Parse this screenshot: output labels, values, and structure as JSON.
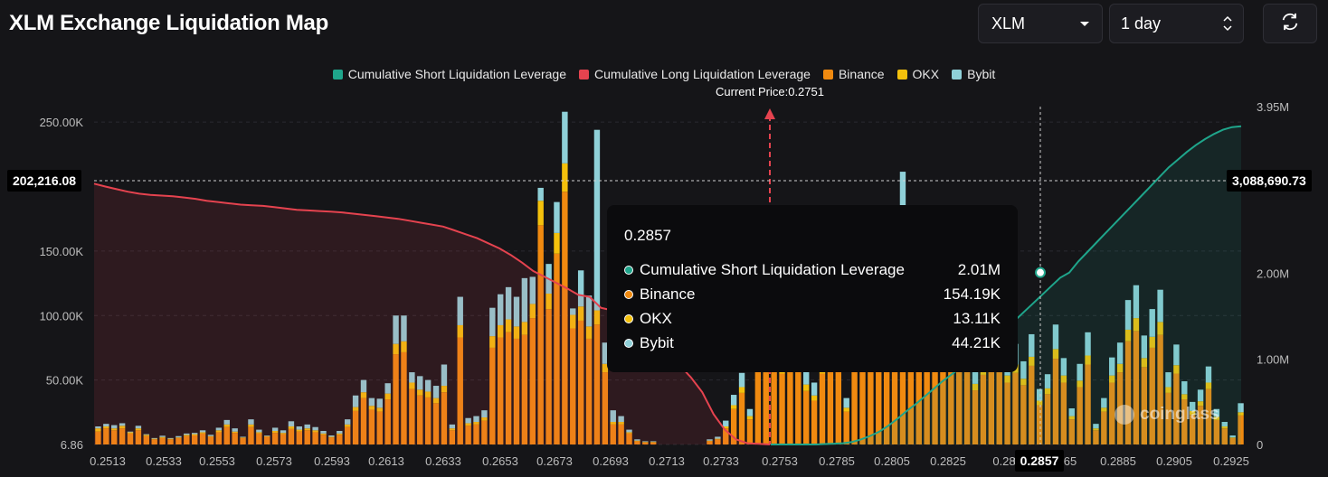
{
  "page": {
    "title": "XLM Exchange Liquidation Map"
  },
  "controls": {
    "symbol": "XLM",
    "range": "1 day"
  },
  "legend": [
    {
      "label": "Cumulative Short Liquidation Leverage",
      "color": "#1fa58b"
    },
    {
      "label": "Cumulative Long Liquidation Leverage",
      "color": "#e5434f"
    },
    {
      "label": "Binance",
      "color": "#f08a10"
    },
    {
      "label": "OKX",
      "color": "#f4c10c"
    },
    {
      "label": "Bybit",
      "color": "#8fd0d8"
    }
  ],
  "current_price_label": "Current Price:0.2751",
  "tooltip": {
    "title": "0.2857",
    "rows": [
      {
        "label": "Cumulative Short Liquidation Leverage",
        "value": "2.01M",
        "color": "#1fa58b"
      },
      {
        "label": "Binance",
        "value": "154.19K",
        "color": "#f08a10"
      },
      {
        "label": "OKX",
        "value": "13.11K",
        "color": "#f4c10c"
      },
      {
        "label": "Bybit",
        "value": "44.21K",
        "color": "#8fd0d8"
      }
    ]
  },
  "crosshair": {
    "x_label": "0.2857",
    "left_y_label": "202,216.08",
    "right_y_label": "3,088,690.73"
  },
  "watermark": "coinglass",
  "chart_data": {
    "type": "bar",
    "title": "XLM Exchange Liquidation Map",
    "current_price": 0.2751,
    "x_tick_labels": [
      "0.2513",
      "0.2533",
      "0.2553",
      "0.2573",
      "0.2593",
      "0.2613",
      "0.2633",
      "0.2653",
      "0.2673",
      "0.2693",
      "0.2713",
      "0.2733",
      "0.2753",
      "0.2785",
      "0.2805",
      "0.2825",
      "0.28",
      "0.2857",
      "65",
      "0.2885",
      "0.2905",
      "0.2925"
    ],
    "left_axis": {
      "ticks": [
        "6.86",
        "50.00K",
        "100.00K",
        "150.00K",
        "250.00K"
      ],
      "min": 6.86,
      "max": 250000
    },
    "right_axis": {
      "ticks": [
        "0",
        "1.00M",
        "2.00M",
        "3.95M"
      ],
      "min": 0,
      "max": 3950000
    },
    "bars": {
      "binance": [
        10000,
        12500,
        11000,
        12500,
        8500,
        11000,
        6500,
        4000,
        5000,
        4000,
        5000,
        6500,
        7000,
        8500,
        6000,
        9500,
        13500,
        9000,
        5000,
        13500,
        8500,
        6000,
        9000,
        8000,
        12000,
        10000,
        11000,
        9500,
        7500,
        5500,
        7500,
        13500,
        26000,
        36000,
        27000,
        25500,
        35000,
        70000,
        71500,
        43000,
        38000,
        36500,
        32000,
        40500,
        11000,
        83000,
        14500,
        15500,
        18500,
        75000,
        83000,
        87000,
        82000,
        85000,
        98000,
        170000,
        105000,
        148000,
        196000,
        90000,
        96000,
        82000,
        93000,
        56000,
        15500,
        15500,
        8500,
        2500,
        1500,
        1500,
        0,
        0,
        0,
        0,
        0,
        0,
        2500,
        4000,
        12500,
        27500,
        40000,
        19500,
        58000,
        56000,
        71000,
        55000,
        60000,
        80000,
        41500,
        34000,
        55000,
        95000,
        80000,
        25500,
        93000,
        82000,
        90000,
        98000,
        71500,
        93000,
        154190,
        70000,
        84000,
        88000,
        65000,
        75000,
        57000,
        63000,
        82000,
        42000,
        54000,
        62000,
        56000,
        48000,
        55500,
        46000,
        61000,
        30500,
        39000,
        66500,
        48000,
        19500,
        44500,
        62000,
        11000,
        25500,
        48000,
        56000,
        80000,
        88000,
        60000,
        75000,
        85000,
        40000,
        55000,
        35000,
        23000,
        30000,
        43000,
        19000,
        12500,
        5000,
        22500
      ],
      "okx": [
        2500,
        1500,
        1500,
        2000,
        1000,
        1500,
        1000,
        500,
        800,
        500,
        500,
        1000,
        1000,
        1000,
        500,
        1500,
        2000,
        1000,
        500,
        2000,
        1000,
        500,
        1500,
        1000,
        2000,
        1500,
        1500,
        1500,
        1000,
        500,
        1000,
        2000,
        3000,
        4500,
        3000,
        3000,
        4500,
        8000,
        8500,
        5000,
        4500,
        4500,
        4000,
        5000,
        1500,
        9500,
        2000,
        2000,
        2500,
        9000,
        9500,
        10000,
        9500,
        10000,
        11000,
        19000,
        12000,
        16000,
        22000,
        10500,
        11000,
        9500,
        11000,
        6500,
        2000,
        2000,
        1000,
        500,
        500,
        500,
        0,
        0,
        0,
        0,
        0,
        0,
        500,
        500,
        1500,
        3000,
        4500,
        2500,
        6500,
        6500,
        8000,
        6500,
        7000,
        9000,
        5000,
        4000,
        6500,
        11000,
        9000,
        3000,
        10500,
        9500,
        10000,
        11000,
        8000,
        10500,
        13110,
        8000,
        9500,
        10000,
        7500,
        8500,
        6500,
        7000,
        9500,
        5000,
        6000,
        7000,
        6500,
        5500,
        6500,
        5000,
        7000,
        3500,
        4500,
        7500,
        5500,
        2500,
        5000,
        7000,
        1500,
        3000,
        5500,
        6500,
        9000,
        10000,
        7000,
        8500,
        10000,
        4500,
        6500,
        4000,
        3000,
        3500,
        5000,
        2500,
        1500,
        500,
        2500
      ],
      "bybit": [
        1500,
        2000,
        2500,
        2000,
        500,
        2000,
        500,
        500,
        1000,
        500,
        1000,
        1000,
        1000,
        1500,
        1000,
        2000,
        3500,
        2500,
        500,
        4000,
        2000,
        500,
        2500,
        2000,
        4000,
        2500,
        3000,
        2500,
        2000,
        1000,
        2000,
        4000,
        9000,
        9500,
        6000,
        7000,
        8000,
        22000,
        20000,
        8000,
        10500,
        9000,
        9500,
        16500,
        3000,
        22000,
        4000,
        4500,
        5500,
        22000,
        24000,
        25000,
        23000,
        34000,
        21000,
        10000,
        23000,
        24000,
        40000,
        5000,
        28000,
        24000,
        140000,
        16500,
        9000,
        4500,
        2000,
        1000,
        500,
        500,
        0,
        0,
        0,
        0,
        0,
        0,
        1000,
        1500,
        4500,
        8000,
        11000,
        5500,
        16500,
        16500,
        21000,
        16500,
        17500,
        24000,
        12500,
        10000,
        16500,
        28000,
        23500,
        7500,
        27000,
        23500,
        26000,
        29000,
        20500,
        27000,
        44210,
        20500,
        24500,
        25500,
        19000,
        22000,
        16500,
        18500,
        24000,
        12000,
        16000,
        18000,
        16500,
        14000,
        16000,
        13500,
        17500,
        9000,
        11000,
        19000,
        13500,
        6000,
        13000,
        18000,
        3500,
        7500,
        14000,
        16500,
        23000,
        25500,
        17500,
        21500,
        25000,
        11500,
        16000,
        10000,
        7000,
        9000,
        12500,
        6000,
        3500,
        1500,
        7000
      ]
    },
    "cumulative_long": [
      202216,
      200000,
      198000,
      196000,
      194500,
      193500,
      193000,
      192500,
      191500,
      190500,
      189000,
      188000,
      187000,
      186000,
      185500,
      185000,
      184000,
      183000,
      182000,
      181500,
      181000,
      180500,
      180000,
      179000,
      178000,
      177000,
      176000,
      175000,
      173500,
      172000,
      170500,
      169000,
      166000,
      163000,
      160000,
      156000,
      152000,
      147000,
      141000,
      134500,
      130000,
      125500,
      121000,
      116000,
      114500,
      106000,
      104000,
      102000,
      99500,
      90500,
      80000,
      71000,
      61500,
      52000,
      40500,
      23500,
      11500,
      4000,
      1000,
      500,
      0
    ],
    "cumulative_short": [
      0,
      0,
      0,
      0,
      0,
      0,
      5000,
      10000,
      15000,
      30000,
      60000,
      100000,
      150000,
      220000,
      300000,
      390000,
      470000,
      560000,
      650000,
      740000,
      820000,
      900000,
      980000,
      1060000,
      1150000,
      1250000,
      1350000,
      1450000,
      1550000,
      1650000,
      1750000,
      1850000,
      1950000,
      2010000,
      2140000,
      2250000,
      2360000,
      2470000,
      2580000,
      2690000,
      2800000,
      2910000,
      3020000,
      3130000,
      3240000,
      3330000,
      3420000,
      3500000,
      3570000,
      3630000,
      3680000,
      3710000,
      3720000
    ],
    "ylabel": "",
    "xlabel": ""
  }
}
